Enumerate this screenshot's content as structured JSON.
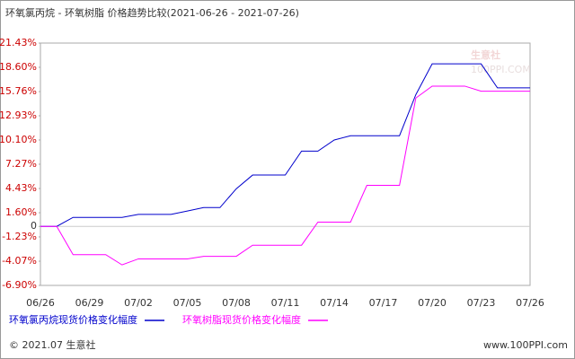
{
  "chart_data": {
    "type": "line",
    "title": "环氧氯丙烷 - 环氧树脂 价格趋势比较(2021-06-26 - 2021-07-26)",
    "categories": [
      "06/26",
      null,
      null,
      "06/29",
      null,
      null,
      "07/02",
      null,
      null,
      "07/05",
      null,
      null,
      "07/08",
      null,
      null,
      "07/11",
      null,
      null,
      "07/14",
      null,
      null,
      "07/17",
      null,
      null,
      "07/20",
      null,
      null,
      "07/23",
      null,
      null,
      "07/26"
    ],
    "series": [
      {
        "name": "环氧氯丙烷现货价格变化幅度",
        "color": "#0000cc",
        "values": [
          0,
          0,
          1.05,
          1.05,
          1.05,
          1.05,
          1.4,
          1.4,
          1.4,
          1.8,
          2.2,
          2.2,
          4.4,
          6.0,
          6.0,
          6.0,
          8.8,
          8.8,
          10.1,
          10.6,
          10.6,
          10.6,
          10.6,
          15.4,
          19.0,
          19.0,
          19.0,
          19.0,
          16.2,
          16.2,
          16.2
        ]
      },
      {
        "name": "环氧树脂现货价格变化幅度",
        "color": "#ff00ff",
        "values": [
          0,
          0,
          -3.3,
          -3.3,
          -3.3,
          -4.5,
          -3.8,
          -3.8,
          -3.8,
          -3.8,
          -3.5,
          -3.5,
          -3.5,
          -2.2,
          -2.2,
          -2.2,
          -2.2,
          0.5,
          0.5,
          0.5,
          4.8,
          4.8,
          4.8,
          15.0,
          16.4,
          16.4,
          16.4,
          15.8,
          15.8,
          15.8,
          15.8
        ]
      }
    ],
    "ylim": [
      -6.9,
      21.43
    ],
    "yticks": [
      {
        "value": 21.43,
        "label": "21.43%"
      },
      {
        "value": 18.6,
        "label": "18.60%"
      },
      {
        "value": 15.76,
        "label": "15.76%"
      },
      {
        "value": 12.93,
        "label": "12.93%"
      },
      {
        "value": 10.1,
        "label": "10.10%"
      },
      {
        "value": 7.27,
        "label": "7.27%"
      },
      {
        "value": 4.43,
        "label": "4.43%"
      },
      {
        "value": 1.6,
        "label": "1.60%"
      },
      0,
      {
        "value": -1.23,
        "label": "-1.23%"
      },
      {
        "value": -4.07,
        "label": "-4.07%"
      },
      {
        "value": -6.9,
        "label": "-6.90%"
      }
    ],
    "watermark": [
      "生意社",
      "100PPI.COM"
    ],
    "footer": {
      "left": "© 2021.07 生意社",
      "right": "www.100PPI.com"
    }
  }
}
